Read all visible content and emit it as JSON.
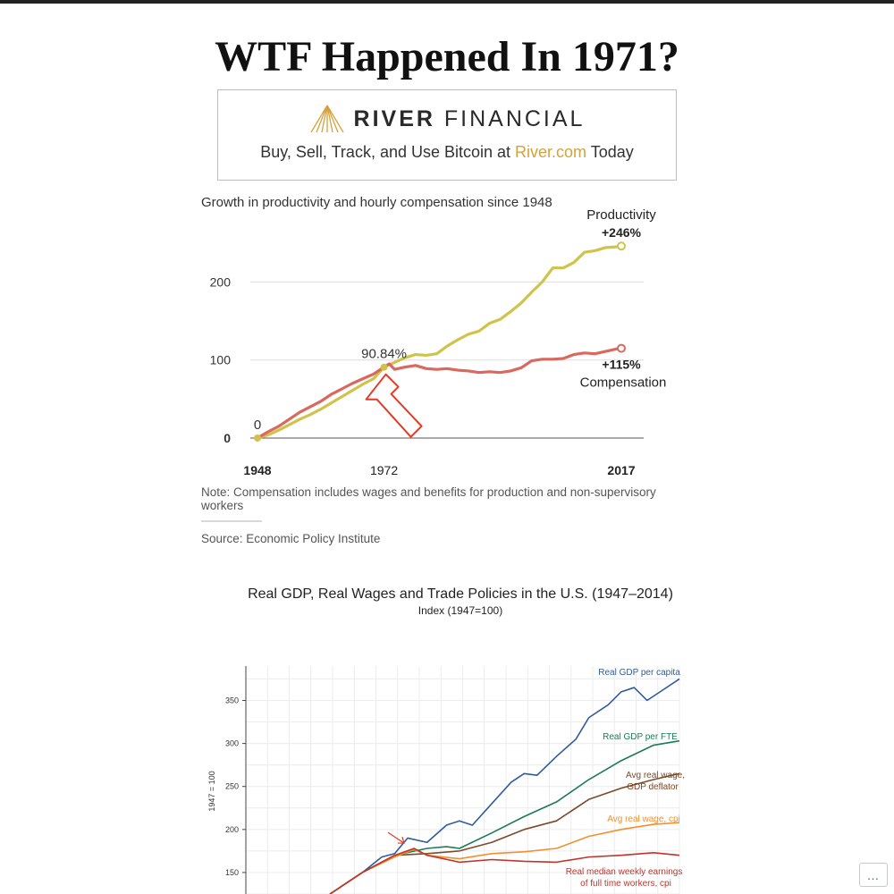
{
  "page": {
    "title": "WTF Happened In 1971?",
    "more_label": "…"
  },
  "ad": {
    "brand_bold": "RIVER",
    "brand_light": "FINANCIAL",
    "tagline_pre": "Buy, Sell, Track, and Use Bitcoin at ",
    "tagline_link": "River.com",
    "tagline_post": " Today",
    "logo_icon": "river-mountain-icon",
    "accent_color": "#d4a23c"
  },
  "chart_data": [
    {
      "type": "line",
      "title": "Growth in productivity and hourly compensation since 1948",
      "xlim": [
        1948,
        2017
      ],
      "ylim": [
        0,
        260
      ],
      "yticks": [
        0,
        100,
        200
      ],
      "xtick_labels": [
        "1948",
        "1972",
        "2017"
      ],
      "xtick_values": [
        1948,
        1972,
        2017
      ],
      "grid": true,
      "series": [
        {
          "name": "Productivity",
          "end_label": "+246%",
          "color": "#cfc449",
          "x": [
            1948,
            1950,
            1952,
            1954,
            1956,
            1958,
            1960,
            1962,
            1964,
            1966,
            1968,
            1970,
            1972,
            1974,
            1976,
            1978,
            1980,
            1982,
            1984,
            1986,
            1988,
            1990,
            1992,
            1994,
            1996,
            1998,
            2000,
            2002,
            2004,
            2006,
            2008,
            2010,
            2012,
            2014,
            2016,
            2017
          ],
          "values": [
            0,
            4,
            10,
            17,
            24,
            30,
            37,
            45,
            53,
            61,
            69,
            76,
            90.84,
            97,
            103,
            107,
            106,
            108,
            118,
            126,
            133,
            137,
            147,
            152,
            162,
            173,
            187,
            200,
            218,
            218,
            225,
            238,
            240,
            244,
            245,
            246
          ]
        },
        {
          "name": "Compensation",
          "end_label": "+115%",
          "color": "#d9685e",
          "x": [
            1948,
            1950,
            1952,
            1954,
            1956,
            1958,
            1960,
            1962,
            1964,
            1966,
            1968,
            1970,
            1972,
            1973,
            1974,
            1976,
            1978,
            1980,
            1982,
            1984,
            1986,
            1988,
            1990,
            1992,
            1994,
            1996,
            1998,
            2000,
            2002,
            2004,
            2006,
            2008,
            2010,
            2012,
            2014,
            2016,
            2017
          ],
          "values": [
            0,
            8,
            15,
            24,
            33,
            40,
            47,
            56,
            63,
            70,
            76,
            82,
            91,
            95,
            88,
            91,
            93,
            89,
            88,
            89,
            87,
            86,
            84,
            85,
            84,
            86,
            90,
            99,
            101,
            101,
            102,
            107,
            109,
            108,
            111,
            114,
            115
          ]
        }
      ],
      "annotations": [
        {
          "text": "90.84%",
          "x": 1972,
          "y": 90.84
        },
        {
          "text": "0",
          "x": 1948,
          "y": 0
        }
      ],
      "note": "Note: Compensation includes wages and benefits for production and non-supervisory workers",
      "source": "Source: Economic Policy Institute",
      "arrow_color": "#e53b26"
    },
    {
      "type": "line",
      "title": "Real GDP, Real Wages and Trade Policies in the U.S. (1947–2014)",
      "subtitle": "Index (1947=100)",
      "ylabel": "1947 = 100",
      "xlim": [
        1947,
        2014
      ],
      "ylim": [
        125,
        390
      ],
      "yticks": [
        150,
        200,
        250,
        300,
        350
      ],
      "grid": true,
      "series": [
        {
          "name": "Real GDP per capita",
          "color": "#2f5b9e",
          "x": [
            1960,
            1965,
            1968,
            1970,
            1972,
            1975,
            1978,
            1980,
            1982,
            1985,
            1988,
            1990,
            1992,
            1995,
            1998,
            2000,
            2003,
            2005,
            2007,
            2009,
            2011,
            2014
          ],
          "values": [
            125,
            150,
            168,
            172,
            190,
            185,
            205,
            210,
            205,
            230,
            255,
            265,
            263,
            285,
            305,
            330,
            345,
            360,
            365,
            350,
            360,
            375
          ]
        },
        {
          "name": "Real GDP per FTE",
          "color": "#1e7a55",
          "x": [
            1960,
            1965,
            1970,
            1975,
            1978,
            1980,
            1985,
            1990,
            1995,
            2000,
            2005,
            2010,
            2014
          ],
          "values": [
            125,
            150,
            170,
            178,
            180,
            178,
            196,
            215,
            232,
            258,
            280,
            298,
            303
          ]
        },
        {
          "name": "Avg real wage, GDP deflator",
          "color": "#7a4a2a",
          "x": [
            1960,
            1965,
            1970,
            1975,
            1980,
            1985,
            1990,
            1995,
            2000,
            2005,
            2010,
            2014
          ],
          "values": [
            125,
            150,
            170,
            172,
            175,
            185,
            200,
            210,
            235,
            248,
            258,
            265
          ]
        },
        {
          "name": "Avg real wage, cpi",
          "color": "#f0902e",
          "x": [
            1960,
            1965,
            1970,
            1973,
            1975,
            1980,
            1985,
            1990,
            1995,
            2000,
            2005,
            2010,
            2014
          ],
          "values": [
            125,
            150,
            168,
            177,
            170,
            166,
            172,
            174,
            178,
            192,
            200,
            206,
            208
          ]
        },
        {
          "name": "Real median weekly earnings of full time workers, cpi",
          "color": "#c0342b",
          "x": [
            1960,
            1965,
            1970,
            1973,
            1975,
            1980,
            1985,
            1990,
            1995,
            2000,
            2005,
            2010,
            2014
          ],
          "values": [
            125,
            150,
            170,
            178,
            170,
            162,
            165,
            163,
            162,
            168,
            170,
            173,
            170
          ]
        }
      ],
      "arrow_color": "#e53b26"
    }
  ]
}
